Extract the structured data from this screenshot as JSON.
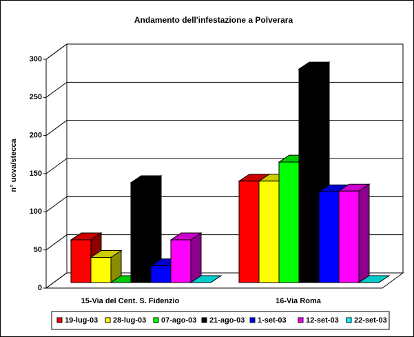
{
  "chart_data": {
    "type": "bar3d",
    "title": "Andamento dell'infestazione a Polverara",
    "y_label": "n° uova/stecca",
    "categories": [
      "15-Via del Cent. S. Fidenzio",
      "16-Via Roma"
    ],
    "series": [
      {
        "name": "19-lug-03",
        "color": "#ff0000",
        "values": [
          56,
          133
        ]
      },
      {
        "name": "28-lug-03",
        "color": "#ffff00",
        "values": [
          33,
          133
        ]
      },
      {
        "name": "07-ago-03",
        "color": "#00ff00",
        "values": [
          0,
          158
        ]
      },
      {
        "name": "21-ago-03",
        "color": "#000000",
        "values": [
          131,
          280
        ]
      },
      {
        "name": "1-set-03",
        "color": "#0000ff",
        "values": [
          22,
          119
        ]
      },
      {
        "name": "12-set-03",
        "color": "#ff00ff",
        "values": [
          56,
          120
        ]
      },
      {
        "name": "22-set-03",
        "color": "#00ffff",
        "values": [
          0,
          0
        ]
      }
    ],
    "ylim": [
      0,
      300
    ],
    "yticks": [
      0,
      50,
      100,
      150,
      200,
      250,
      300
    ],
    "grid": true,
    "legend": "bottom"
  }
}
